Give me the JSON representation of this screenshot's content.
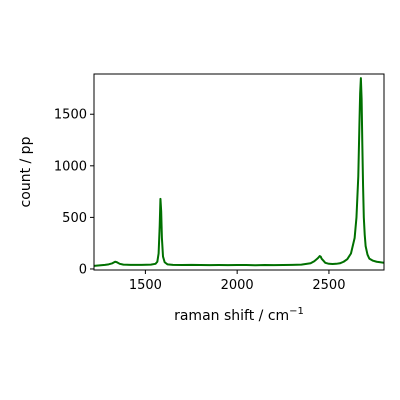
{
  "chart_data": {
    "type": "line",
    "title": "",
    "xlabel": "raman shift / cm",
    "xlabel_superscript": "−1",
    "ylabel": "count / pp",
    "xlim": [
      1220,
      2800
    ],
    "ylim": [
      -10,
      1890
    ],
    "xticks": [
      1500,
      2000,
      2500
    ],
    "yticks": [
      0,
      500,
      1000,
      1500
    ],
    "xtick_labels": [
      "1500",
      "2000",
      "2500"
    ],
    "ytick_labels": [
      "0",
      "500",
      "1000",
      "1500"
    ],
    "grid": false,
    "line_color": "#007000",
    "series": [
      {
        "x": [
          1220,
          1250,
          1280,
          1300,
          1320,
          1335,
          1345,
          1360,
          1380,
          1420,
          1480,
          1530,
          1555,
          1565,
          1572,
          1578,
          1582,
          1586,
          1590,
          1596,
          1605,
          1620,
          1650,
          1700,
          1750,
          1800,
          1850,
          1900,
          1950,
          2000,
          2050,
          2100,
          2150,
          2200,
          2250,
          2300,
          2350,
          2400,
          2420,
          2440,
          2450,
          2455,
          2460,
          2470,
          2480,
          2500,
          2520,
          2540,
          2560,
          2580,
          2600,
          2620,
          2640,
          2650,
          2660,
          2666,
          2670,
          2674,
          2678,
          2682,
          2686,
          2690,
          2695,
          2700,
          2710,
          2720,
          2740,
          2760,
          2780,
          2800
        ],
        "y": [
          30,
          35,
          40,
          45,
          55,
          70,
          65,
          50,
          42,
          40,
          40,
          42,
          50,
          70,
          150,
          420,
          680,
          560,
          300,
          120,
          65,
          45,
          40,
          38,
          40,
          38,
          37,
          38,
          37,
          38,
          38,
          36,
          38,
          37,
          38,
          40,
          42,
          55,
          75,
          105,
          125,
          120,
          100,
          80,
          60,
          50,
          48,
          50,
          55,
          70,
          95,
          150,
          300,
          500,
          900,
          1400,
          1700,
          1850,
          1650,
          1200,
          800,
          500,
          330,
          220,
          140,
          100,
          80,
          70,
          65,
          60
        ]
      }
    ]
  }
}
